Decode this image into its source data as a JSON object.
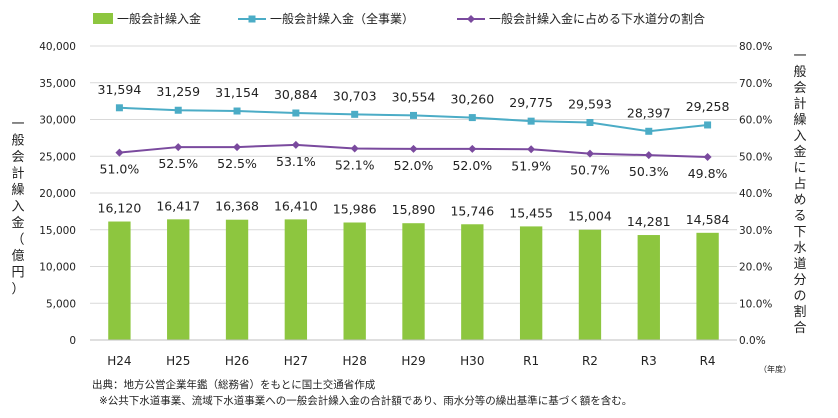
{
  "chart_data": {
    "type": "bar",
    "categories": [
      "H24",
      "H25",
      "H26",
      "H27",
      "H28",
      "H29",
      "H30",
      "R1",
      "R2",
      "R3",
      "R4"
    ],
    "series": [
      {
        "name": "一般会計繰入金",
        "type": "bar",
        "axis": "left",
        "color": "#8dc63f",
        "values": [
          16120,
          16417,
          16368,
          16410,
          15986,
          15890,
          15746,
          15455,
          15004,
          14281,
          14584
        ],
        "labels": [
          "16,120",
          "16,417",
          "16,368",
          "16,410",
          "15,986",
          "15,890",
          "15,746",
          "15,455",
          "15,004",
          "14,281",
          "14,584"
        ]
      },
      {
        "name": "一般会計繰入金（全事業）",
        "type": "line",
        "axis": "left",
        "color": "#4bacc6",
        "values": [
          31594,
          31259,
          31154,
          30884,
          30703,
          30554,
          30260,
          29775,
          29593,
          28397,
          29258
        ],
        "labels": [
          "31,594",
          "31,259",
          "31,154",
          "30,884",
          "30,703",
          "30,554",
          "30,260",
          "29,775",
          "29,593",
          "28,397",
          "29,258"
        ]
      },
      {
        "name": "一般会計繰入金に占める下水道分の割合",
        "type": "line",
        "axis": "right",
        "color": "#7a4a9e",
        "values": [
          51.0,
          52.5,
          52.5,
          53.1,
          52.1,
          52.0,
          52.0,
          51.9,
          50.7,
          50.3,
          49.8
        ],
        "labels": [
          "51.0%",
          "52.5%",
          "52.5%",
          "53.1%",
          "52.1%",
          "52.0%",
          "52.0%",
          "51.9%",
          "50.7%",
          "50.3%",
          "49.8%"
        ]
      }
    ],
    "y_left": {
      "label": "一般会計繰入金（億円）",
      "ylim": [
        0,
        40000
      ],
      "ticks": [
        0,
        5000,
        10000,
        15000,
        20000,
        25000,
        30000,
        35000,
        40000
      ],
      "tick_labels": [
        "0",
        "5,000",
        "10,000",
        "15,000",
        "20,000",
        "25,000",
        "30,000",
        "35,000",
        "40,000"
      ]
    },
    "y_right": {
      "label": "一般会計繰入金に占める下水道分の割合",
      "ylim": [
        0,
        80
      ],
      "ticks": [
        0,
        10,
        20,
        30,
        40,
        50,
        60,
        70,
        80
      ],
      "tick_labels": [
        "0.0%",
        "10.0%",
        "20.0%",
        "30.0%",
        "40.0%",
        "50.0%",
        "60.0%",
        "70.0%",
        "80.0%"
      ]
    },
    "x_unit": "（年度）",
    "legend_position": "top",
    "grid": true
  },
  "notes": {
    "source": "出典：地方公営企業年鑑（総務省）をもとに国土交通省作成",
    "remark": "※公共下水道事業、流域下水道事業への一般会計繰入金の合計額であり、雨水分等の繰出基準に基づく額を含む。"
  }
}
